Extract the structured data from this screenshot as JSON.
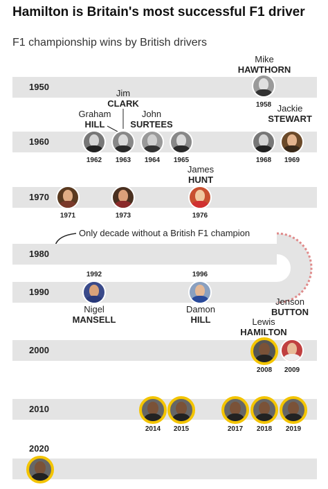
{
  "title": "Hamilton is Britain's most successful F1 driver",
  "subtitle": "F1 championship wins by British drivers",
  "decades": [
    "1950",
    "1960",
    "1970",
    "1980",
    "1990",
    "2000",
    "2010",
    "2020"
  ],
  "years": {
    "y1958": "1958",
    "y1962": "1962",
    "y1963": "1963",
    "y1964": "1964",
    "y1965": "1965",
    "y1968": "1968",
    "y1969": "1969",
    "y1971": "1971",
    "y1973": "1973",
    "y1976": "1976",
    "y1992": "1992",
    "y1996": "1996",
    "y2008": "2008",
    "y2009": "2009",
    "y2014": "2014",
    "y2015": "2015",
    "y2017": "2017",
    "y2018": "2018",
    "y2019": "2019"
  },
  "drivers": {
    "hawthorn": {
      "first": "Mike",
      "last": "HAWTHORN"
    },
    "clark": {
      "first": "Jim",
      "last": "CLARK"
    },
    "hill": {
      "first": "Graham",
      "last": "HILL"
    },
    "surtees": {
      "first": "John",
      "last": "SURTEES"
    },
    "stewart": {
      "first": "Jackie",
      "last": "STEWART"
    },
    "hunt": {
      "first": "James",
      "last": "HUNT"
    },
    "mansell": {
      "first": "Nigel",
      "last": "MANSELL"
    },
    "damon": {
      "first": "Damon",
      "last": "HILL"
    },
    "button": {
      "first": "Jenson",
      "last": "BUTTON"
    },
    "hamilton": {
      "first": "Lewis",
      "last": "HAMILTON"
    }
  },
  "note": "Only decade without a British F1 champion",
  "colors": {
    "band": "#e4e4e4",
    "hamilton_ring": "#f3c400",
    "curb": "#e08a8a"
  }
}
